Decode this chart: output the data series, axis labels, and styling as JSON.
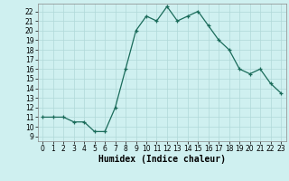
{
  "x": [
    0,
    1,
    2,
    3,
    4,
    5,
    6,
    7,
    8,
    9,
    10,
    11,
    12,
    13,
    14,
    15,
    16,
    17,
    18,
    19,
    20,
    21,
    22,
    23
  ],
  "y": [
    11,
    11,
    11,
    10.5,
    10.5,
    9.5,
    9.5,
    12,
    16,
    20,
    21.5,
    21,
    22.5,
    21,
    21.5,
    22,
    20.5,
    19,
    18,
    16,
    15.5,
    16,
    14.5,
    13.5
  ],
  "xlim": [
    -0.5,
    23.5
  ],
  "ylim": [
    8.5,
    22.8
  ],
  "yticks": [
    9,
    10,
    11,
    12,
    13,
    14,
    15,
    16,
    17,
    18,
    19,
    20,
    21,
    22
  ],
  "xticks": [
    0,
    1,
    2,
    3,
    4,
    5,
    6,
    7,
    8,
    9,
    10,
    11,
    12,
    13,
    14,
    15,
    16,
    17,
    18,
    19,
    20,
    21,
    22,
    23
  ],
  "xlabel": "Humidex (Indice chaleur)",
  "line_color": "#1a6b5a",
  "marker": "+",
  "background_color": "#cff0f0",
  "grid_color": "#b0d8d8",
  "tick_fontsize": 5.5,
  "label_fontsize": 7.0
}
